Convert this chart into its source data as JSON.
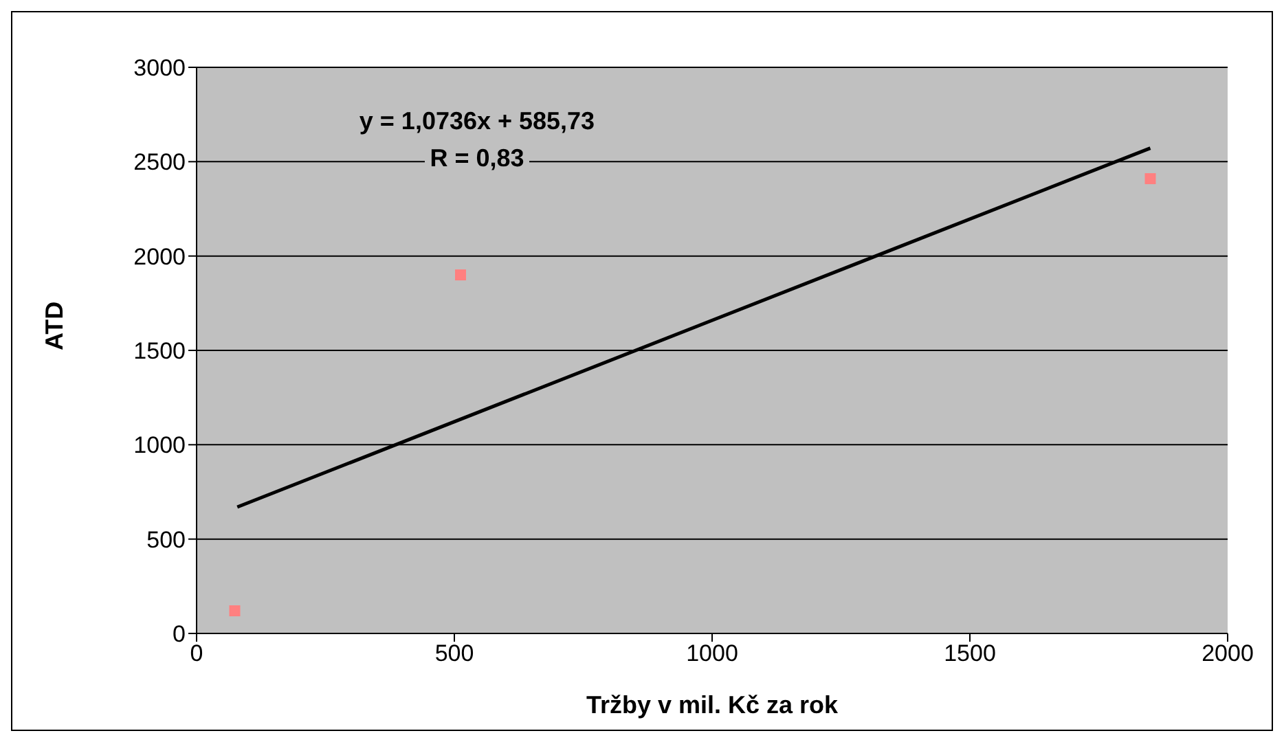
{
  "chart_data": {
    "type": "scatter",
    "xlabel": "Tržby v mil. Kč za rok",
    "ylabel": "ATD",
    "annotations": [
      "y = 1,0736x + 585,73",
      "R = 0,83"
    ],
    "xlim": [
      0,
      2000
    ],
    "xticks": [
      0,
      500,
      1000,
      1500,
      2000
    ],
    "ylim": [
      0,
      3000
    ],
    "yticks": [
      0,
      500,
      1000,
      1500,
      2000,
      2500,
      3000
    ],
    "grid": "y",
    "series": [
      {
        "color": "#ff8080",
        "marker": "square",
        "x": [
          74,
          512,
          1850
        ],
        "values": [
          120,
          1900,
          2410
        ]
      },
      {
        "type": "line",
        "color": "#000000",
        "marker": "none",
        "x": [
          79,
          1850
        ],
        "values": [
          670,
          2572
        ]
      }
    ]
  }
}
